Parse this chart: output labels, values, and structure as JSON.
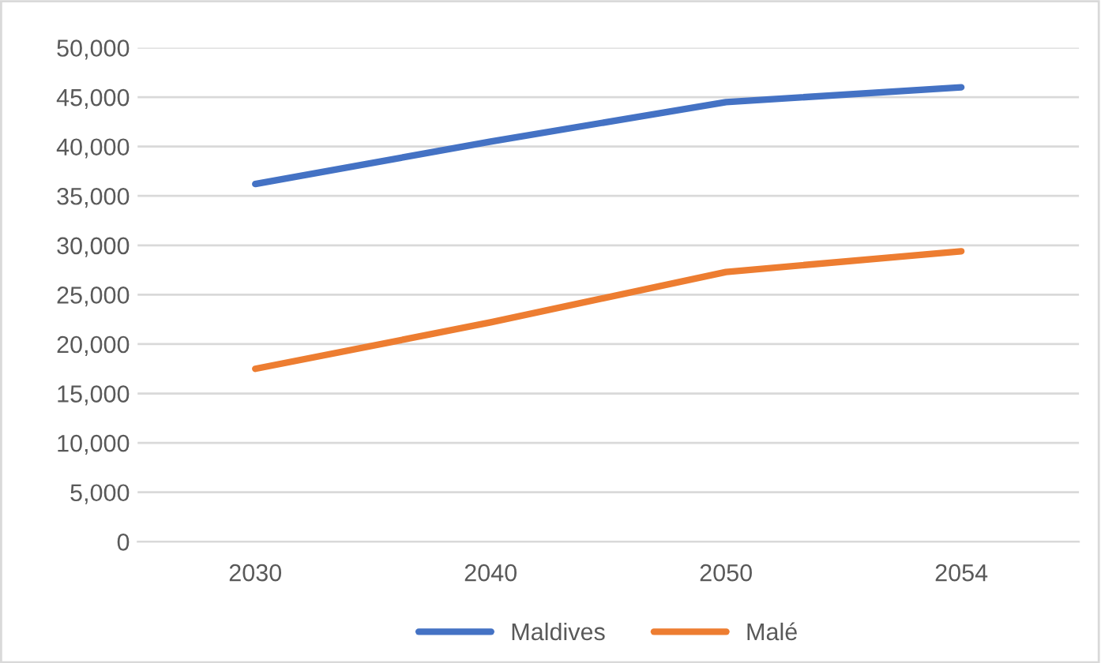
{
  "chart_data": {
    "type": "line",
    "categories": [
      "2030",
      "2040",
      "2050",
      "2054"
    ],
    "series": [
      {
        "name": "Maldives",
        "color": "#4472c4",
        "values": [
          36200,
          40500,
          44500,
          46000
        ]
      },
      {
        "name": "Malé",
        "color": "#ed7d31",
        "values": [
          17500,
          22200,
          27300,
          29400
        ]
      }
    ],
    "ylim": [
      0,
      50000
    ],
    "yticks": [
      {
        "value": 0,
        "label": "0"
      },
      {
        "value": 5000,
        "label": "5,000"
      },
      {
        "value": 10000,
        "label": "10,000"
      },
      {
        "value": 15000,
        "label": "15,000"
      },
      {
        "value": 20000,
        "label": "20,000"
      },
      {
        "value": 25000,
        "label": "25,000"
      },
      {
        "value": 30000,
        "label": "30,000"
      },
      {
        "value": 35000,
        "label": "35,000"
      },
      {
        "value": 40000,
        "label": "40,000"
      },
      {
        "value": 45000,
        "label": "45,000"
      },
      {
        "value": 50000,
        "label": "50,000"
      }
    ],
    "grid": "y",
    "legend": "bottom",
    "marker": "none",
    "line_style": "solid"
  }
}
